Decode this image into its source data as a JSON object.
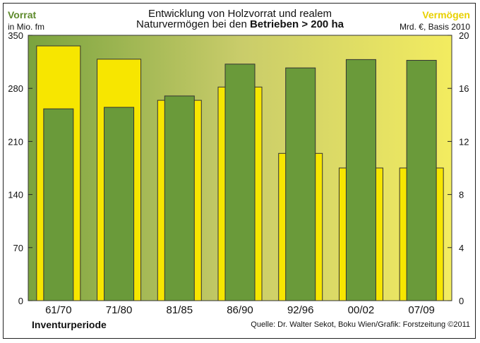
{
  "header": {
    "title_line1": "Entwicklung von Holzvorrat und realem",
    "title_line2_prefix": "Naturvermögen bei den ",
    "title_line2_bold": "Betrieben > 200 ha",
    "left_axis_title": "Vorrat",
    "left_axis_unit": "in Mio. fm",
    "right_axis_title": "Vermögen",
    "right_axis_unit": "Mrd. €, Basis 2010"
  },
  "footer": {
    "x_axis_title": "Inventurperiode",
    "source": "Quelle: Dr. Walter Sekot, Boku Wien/Grafik: Forstzeitung ©2011"
  },
  "colors": {
    "vorrat_bar": "#f7e600",
    "vermoegen_bar": "#6a9a3a",
    "bg_dark": "#7aa33e",
    "bg_light": "#f3ec60"
  },
  "chart_data": {
    "type": "bar",
    "categories": [
      "61/70",
      "71/80",
      "81/85",
      "86/90",
      "92/96",
      "00/02",
      "07/09"
    ],
    "series": [
      {
        "name": "Vorrat",
        "axis": "left",
        "values": [
          253,
          255,
          270,
          312,
          307,
          318,
          317
        ]
      },
      {
        "name": "Vermögen",
        "axis": "right",
        "values": [
          19.2,
          18.2,
          15.1,
          16.1,
          11.1,
          10.0,
          10.0
        ]
      }
    ],
    "left_axis": {
      "ylim": [
        0,
        350
      ],
      "ticks": [
        0,
        70,
        140,
        210,
        280,
        350
      ]
    },
    "right_axis": {
      "ylim": [
        0,
        20
      ],
      "ticks": [
        0,
        4,
        8,
        12,
        16,
        20
      ]
    }
  }
}
